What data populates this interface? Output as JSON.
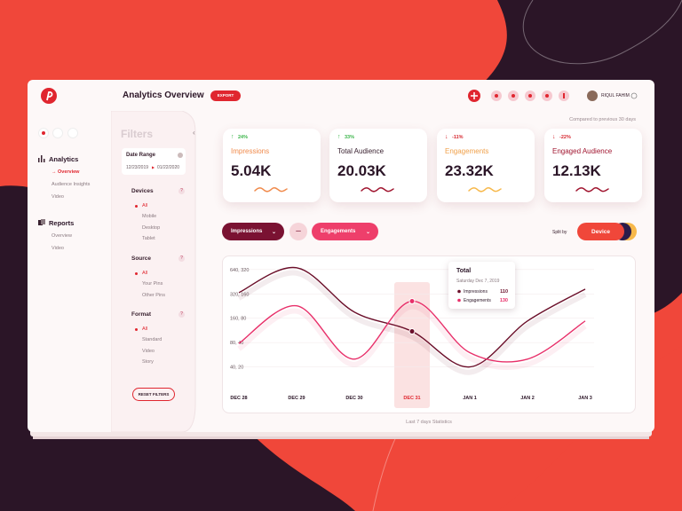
{
  "header": {
    "title": "Analytics Overview",
    "export": "EXPORT",
    "user": "RIQUL FAHIM"
  },
  "sidebar": {
    "sections": [
      {
        "title": "Analytics",
        "items": [
          "Overview",
          "Audience Insights",
          "Video"
        ]
      },
      {
        "title": "Reports",
        "items": [
          "Overview",
          "Video"
        ]
      }
    ]
  },
  "filters": {
    "title": "Filters",
    "date_range": {
      "label": "Date Range",
      "from": "12/23/2019",
      "to": "01/22/2020"
    },
    "groups": [
      {
        "title": "Devices",
        "options": [
          "All",
          "Mobile",
          "Desktop",
          "Tablet"
        ]
      },
      {
        "title": "Source",
        "options": [
          "All",
          "Your Pins",
          "Other Pins"
        ]
      },
      {
        "title": "Format",
        "options": [
          "All",
          "Standard",
          "Video",
          "Story"
        ]
      }
    ],
    "reset": "RESET FILTERS"
  },
  "comparison_note": "Compared to previous 30 days",
  "kpis": [
    {
      "change": "24%",
      "label": "Impressions",
      "value": "5.04K"
    },
    {
      "change": "33%",
      "label": "Total Audience",
      "value": "20.03K"
    },
    {
      "change": "-11%",
      "label": "Engagements",
      "value": "23.32K"
    },
    {
      "change": "-22%",
      "label": "Engaged Audience",
      "value": "12.13K"
    }
  ],
  "controls": {
    "metric_a": "Impressions",
    "metric_b": "Engagements",
    "split_label": "Split by",
    "split_value": "Device"
  },
  "chart_data": {
    "type": "line",
    "categories": [
      "DEC 28",
      "DEC 29",
      "DEC 30",
      "DEC 31",
      "JAN 1",
      "JAN 2",
      "JAN 3"
    ],
    "series": [
      {
        "name": "Impressions",
        "color": "#6b0f2a",
        "values": [
          332,
          673,
          191,
          110,
          40,
          148,
          367
        ]
      },
      {
        "name": "Engagements",
        "color": "#e8306a",
        "axis": "y2",
        "values": [
          39,
          114,
          25,
          130,
          30,
          25,
          74
        ]
      }
    ],
    "log_scale": true,
    "grid": true,
    "ylim": [
      30,
      800
    ],
    "y2lim": [
      15,
      400
    ],
    "yticks": [
      {
        "value": 640,
        "label": "640, 320"
      },
      {
        "value": 320,
        "label": "320, 160"
      },
      {
        "value": 160,
        "label": "160, 80"
      },
      {
        "value": 80,
        "label": "80, 40"
      },
      {
        "value": 40,
        "label": "40, 20"
      }
    ],
    "tooltip": {
      "title": "Total",
      "date": "Saturday Dec 7, 2019"
    }
  },
  "footer": "Last 7 days Statistics"
}
